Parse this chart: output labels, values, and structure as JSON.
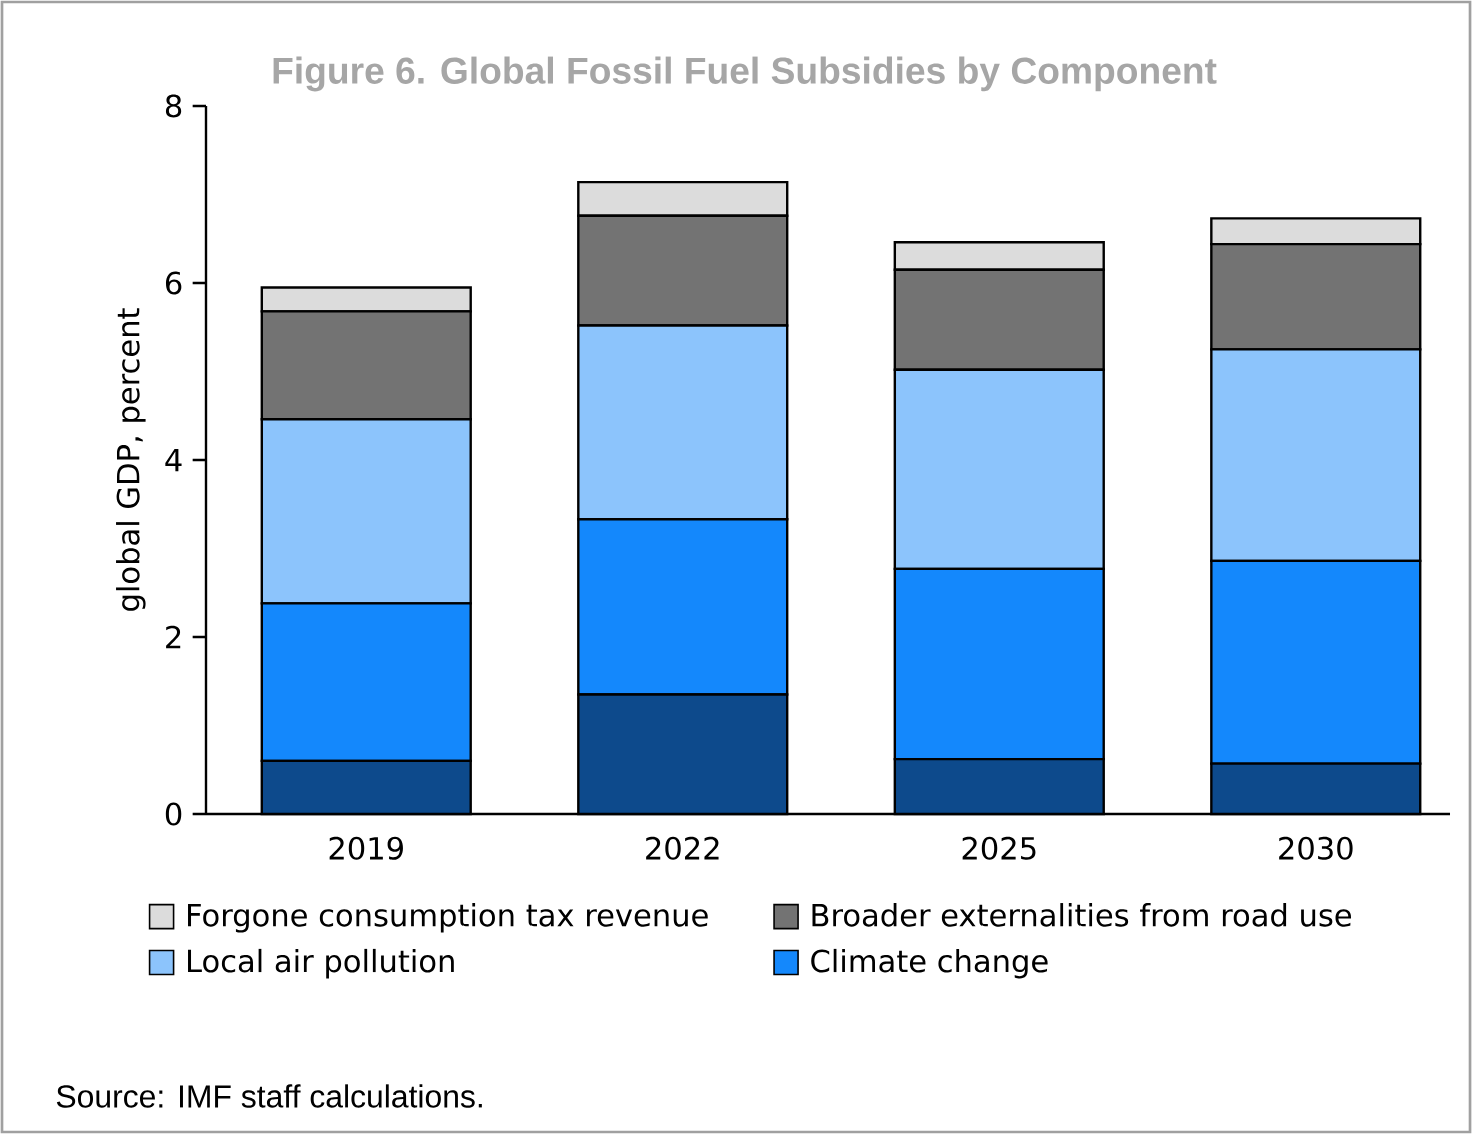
{
  "chart_data": {
    "type": "bar",
    "stacked": true,
    "title": "Figure 6. Global Fossil Fuel Subsidies by Component",
    "ylabel": "global GDP, percent",
    "categories": [
      "2019",
      "2022",
      "2025",
      "2030"
    ],
    "series": [
      {
        "color": "#0d4a8c",
        "values": [
          0.6,
          1.35,
          0.62,
          0.57
        ]
      },
      {
        "name": "Climate change",
        "color": "#1488fc",
        "values": [
          1.78,
          1.98,
          2.15,
          2.29
        ]
      },
      {
        "name": "Local air pollution",
        "color": "#8cc4fc",
        "values": [
          2.08,
          2.19,
          2.25,
          2.39
        ]
      },
      {
        "name": "Broader externalities from road use",
        "color": "#737373",
        "values": [
          1.22,
          1.24,
          1.13,
          1.19
        ]
      },
      {
        "name": "Forgone consumption tax revenue",
        "color": "#dcdcdc",
        "values": [
          0.27,
          0.38,
          0.31,
          0.29
        ]
      }
    ],
    "ylim": [
      0,
      8
    ],
    "yticks": [
      0,
      2,
      4,
      6,
      8
    ],
    "legend": "bottom",
    "annotations": [
      "Source: IMF staff calculations."
    ]
  }
}
